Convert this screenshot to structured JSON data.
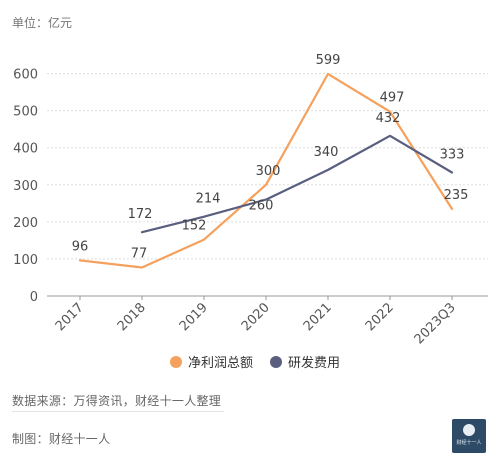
{
  "unit_label": "单位：亿元",
  "source": "数据来源：万得资讯，财经十一人整理",
  "credit": "制图：财经十一人",
  "logo_text": "财经十一人",
  "colors": {
    "profit": "#f5a15d",
    "rnd": "#5a5f80",
    "grid": "#dedede",
    "axis": "#999999",
    "tick_text": "#555555",
    "label_text": "#444444"
  },
  "chart_data": {
    "type": "line",
    "categories": [
      "2017",
      "2018",
      "2019",
      "2020",
      "2021",
      "2022",
      "2023Q3"
    ],
    "yticks": [
      0,
      100,
      200,
      300,
      400,
      500,
      600
    ],
    "ylim": [
      0,
      650
    ],
    "grid": true,
    "legend_position": "bottom-center",
    "series": [
      {
        "name": "净利润总额",
        "color": "#f5a15d",
        "values": [
          96,
          77,
          152,
          300,
          599,
          497,
          235
        ]
      },
      {
        "name": "研发费用",
        "color": "#5a5f80",
        "values": [
          null,
          172,
          214,
          260,
          340,
          432,
          333
        ]
      }
    ]
  }
}
